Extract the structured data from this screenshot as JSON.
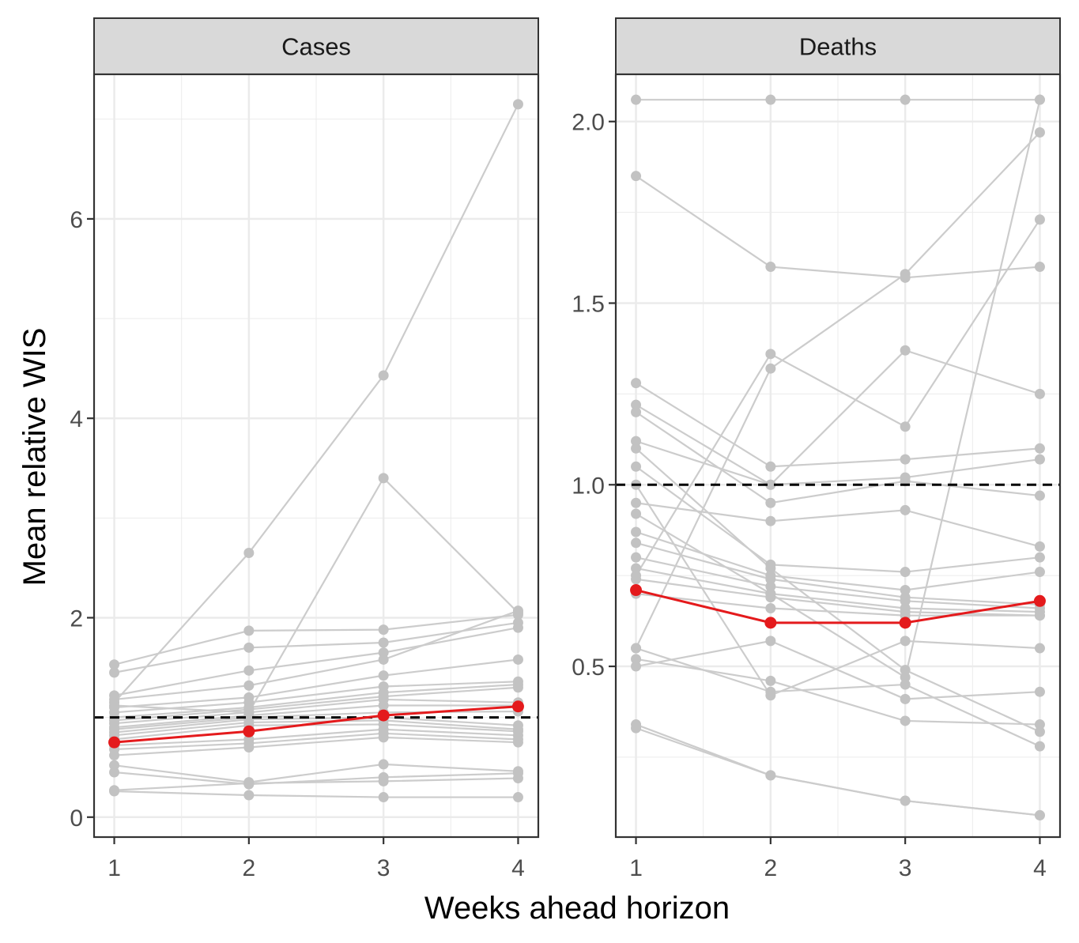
{
  "labels": {
    "xlabel": "Weeks ahead horizon",
    "ylabel": "Mean relative WIS"
  },
  "colors": {
    "model_line": "#cccccc",
    "model_point": "#c2c2c2",
    "ensemble": "#e41a1c",
    "reference_line": "#000000",
    "strip_fill": "#d9d9d9",
    "grid": "#ebebeb"
  },
  "chart_data": [
    {
      "type": "line",
      "title": "Cases",
      "x": [
        1,
        2,
        3,
        4
      ],
      "xticks": [
        "1",
        "2",
        "3",
        "4"
      ],
      "xlim": [
        0.85,
        4.15
      ],
      "ylim": [
        -0.2,
        7.45
      ],
      "yticks": [
        0,
        2,
        4,
        6
      ],
      "ytick_labels": [
        "0",
        "2",
        "4",
        "6"
      ],
      "reference_y": 1.0,
      "grid": true,
      "highlight": {
        "values": [
          0.75,
          0.86,
          1.02,
          1.11
        ]
      },
      "series": [
        {
          "values": [
            1.15,
            2.65,
            4.43,
            7.15
          ]
        },
        {
          "values": [
            1.12,
            1.05,
            3.4,
            2.05
          ]
        },
        {
          "values": [
            1.53,
            1.87,
            1.88,
            2.03
          ]
        },
        {
          "values": [
            1.45,
            1.7,
            1.75,
            1.95
          ]
        },
        {
          "values": [
            1.22,
            1.47,
            1.65,
            1.9
          ]
        },
        {
          "values": [
            1.18,
            1.32,
            1.58,
            2.07
          ]
        },
        {
          "values": [
            1.1,
            1.2,
            1.42,
            1.58
          ]
        },
        {
          "values": [
            1.05,
            1.15,
            1.31,
            1.36
          ]
        },
        {
          "values": [
            1.0,
            1.1,
            1.25,
            1.33
          ]
        },
        {
          "values": [
            0.97,
            1.08,
            1.21,
            1.3
          ]
        },
        {
          "values": [
            0.94,
            1.05,
            1.18,
            1.15
          ]
        },
        {
          "values": [
            0.9,
            1.02,
            1.12,
            1.12
          ]
        },
        {
          "values": [
            0.88,
            1.0,
            1.05,
            1.06
          ]
        },
        {
          "values": [
            0.85,
            0.98,
            1.0,
            0.92
          ]
        },
        {
          "values": [
            0.82,
            0.95,
            0.97,
            0.88
          ]
        },
        {
          "values": [
            0.78,
            0.92,
            0.93,
            0.86
          ]
        },
        {
          "values": [
            0.72,
            0.78,
            0.88,
            0.82
          ]
        },
        {
          "values": [
            0.68,
            0.74,
            0.84,
            0.78
          ]
        },
        {
          "values": [
            0.62,
            0.7,
            0.8,
            0.75
          ]
        },
        {
          "values": [
            0.52,
            0.35,
            0.53,
            0.46
          ]
        },
        {
          "values": [
            0.45,
            0.33,
            0.4,
            0.44
          ]
        },
        {
          "values": [
            0.27,
            0.34,
            0.36,
            0.39
          ]
        },
        {
          "values": [
            0.26,
            0.22,
            0.2,
            0.2
          ]
        }
      ]
    },
    {
      "type": "line",
      "title": "Deaths",
      "x": [
        1,
        2,
        3,
        4
      ],
      "xticks": [
        "1",
        "2",
        "3",
        "4"
      ],
      "xlim": [
        0.85,
        4.15
      ],
      "ylim": [
        0.03,
        2.13
      ],
      "yticks": [
        0.5,
        1.0,
        1.5,
        2.0
      ],
      "ytick_labels": [
        "0.5",
        "1.0",
        "1.5",
        "2.0"
      ],
      "reference_y": 1.0,
      "grid": true,
      "highlight": {
        "values": [
          0.71,
          0.62,
          0.62,
          0.68
        ]
      },
      "series": [
        {
          "values": [
            2.06,
            2.06,
            2.06,
            2.06
          ]
        },
        {
          "values": [
            1.85,
            1.6,
            1.57,
            1.6
          ]
        },
        {
          "values": [
            0.55,
            1.32,
            1.58,
            1.97
          ]
        },
        {
          "values": [
            0.75,
            1.36,
            1.16,
            1.73
          ]
        },
        {
          "values": [
            1.12,
            1.0,
            1.37,
            1.25
          ]
        },
        {
          "values": [
            1.28,
            1.05,
            1.07,
            1.1
          ]
        },
        {
          "values": [
            1.22,
            1.0,
            1.02,
            1.07
          ]
        },
        {
          "values": [
            1.2,
            0.95,
            1.01,
            0.97
          ]
        },
        {
          "values": [
            1.1,
            0.77,
            0.49,
            0.32
          ]
        },
        {
          "values": [
            0.92,
            0.7,
            0.47,
            2.06
          ]
        },
        {
          "values": [
            0.95,
            0.9,
            0.93,
            0.83
          ]
        },
        {
          "values": [
            1.05,
            0.78,
            0.76,
            0.8
          ]
        },
        {
          "values": [
            0.87,
            0.75,
            0.71,
            0.76
          ]
        },
        {
          "values": [
            0.84,
            0.74,
            0.69,
            0.67
          ]
        },
        {
          "values": [
            0.8,
            0.72,
            0.68,
            0.66
          ]
        },
        {
          "values": [
            0.77,
            0.7,
            0.66,
            0.65
          ]
        },
        {
          "values": [
            0.74,
            0.69,
            0.65,
            0.64
          ]
        },
        {
          "values": [
            0.7,
            0.66,
            0.64,
            0.64
          ]
        },
        {
          "values": [
            1.0,
            0.42,
            0.57,
            0.55
          ]
        },
        {
          "values": [
            0.5,
            0.57,
            0.41,
            0.43
          ]
        },
        {
          "values": [
            0.52,
            0.46,
            0.35,
            0.34
          ]
        },
        {
          "values": [
            0.55,
            0.43,
            0.45,
            0.28
          ]
        },
        {
          "values": [
            0.34,
            0.2,
            0.13,
            0.09
          ]
        },
        {
          "values": [
            0.33,
            0.2,
            0.13,
            0.09
          ]
        }
      ]
    }
  ]
}
